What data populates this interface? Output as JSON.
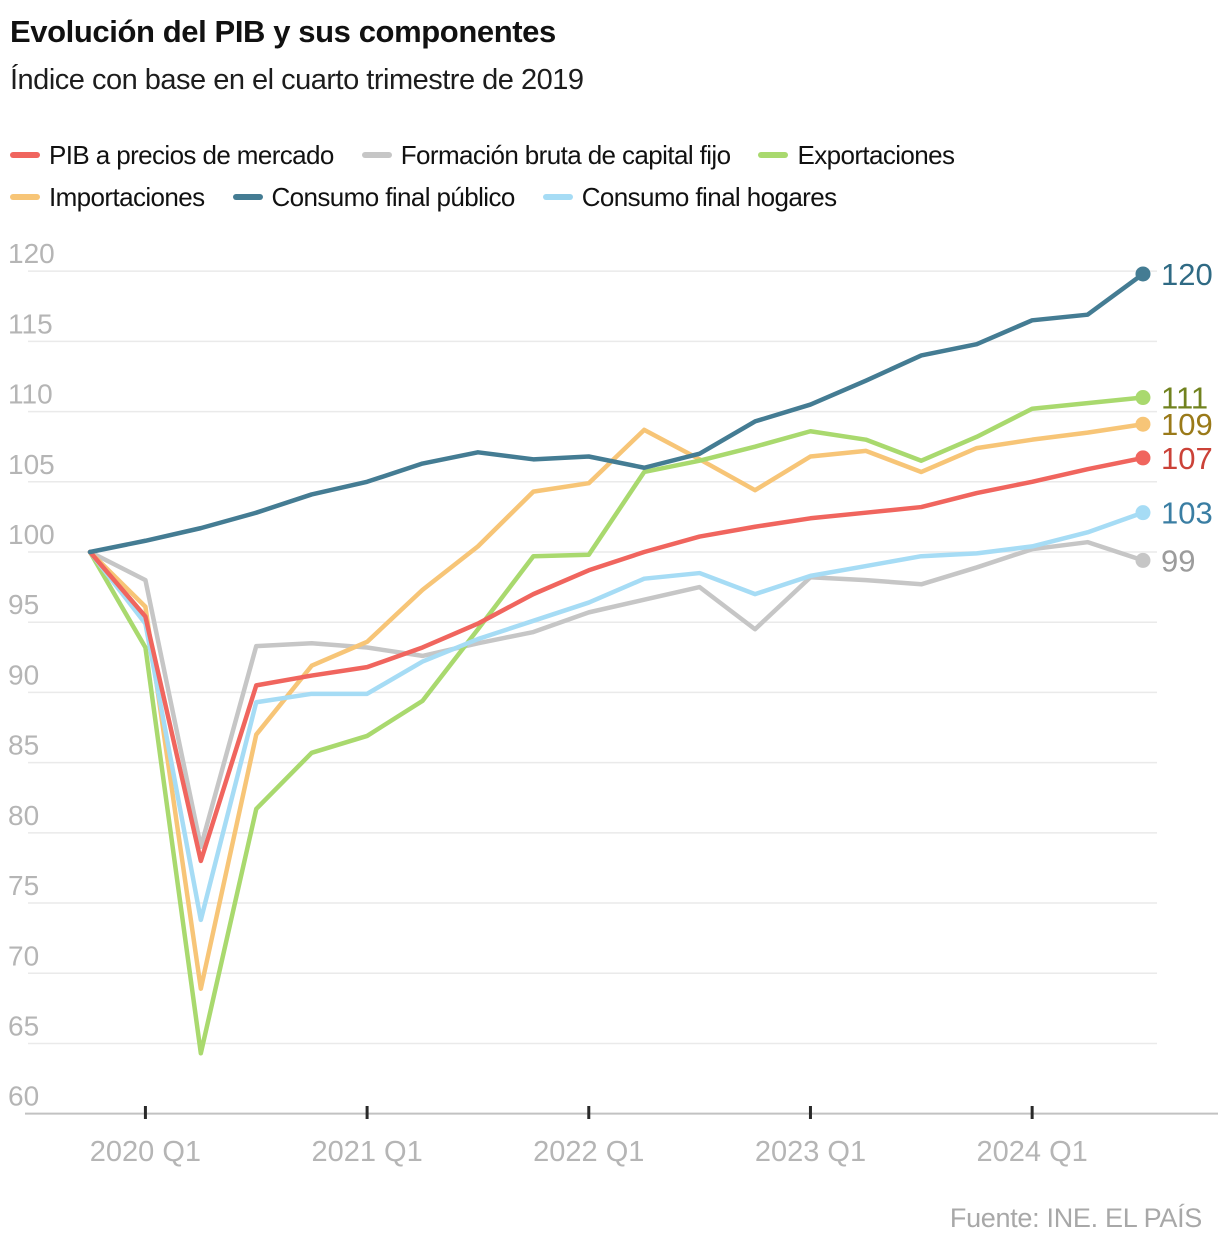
{
  "header": {
    "title": "Evolución del PIB y sus componentes",
    "subtitle": "Índice con base en el cuarto trimestre de 2019"
  },
  "footer": {
    "source": "Fuente: INE. EL PAÍS"
  },
  "chart_data": {
    "type": "line",
    "title": "Evolución del PIB y sus componentes",
    "subtitle": "Índice con base en el cuarto trimestre de 2019",
    "x_unit": "quarter",
    "quarters": [
      "2019 Q4",
      "2020 Q1",
      "2020 Q2",
      "2020 Q3",
      "2020 Q4",
      "2021 Q1",
      "2021 Q2",
      "2021 Q3",
      "2021 Q4",
      "2022 Q1",
      "2022 Q2",
      "2022 Q3",
      "2022 Q4",
      "2023 Q1",
      "2023 Q2",
      "2023 Q3",
      "2023 Q4",
      "2024 Q1",
      "2024 Q2",
      "2024 Q3"
    ],
    "x_tick_indices": [
      1,
      5,
      9,
      13,
      17
    ],
    "x_tick_labels": [
      "2020 Q1",
      "2021 Q1",
      "2022 Q1",
      "2023 Q1",
      "2024 Q1"
    ],
    "ylim": [
      60,
      120
    ],
    "y_ticks": [
      60,
      65,
      70,
      75,
      80,
      85,
      90,
      95,
      100,
      105,
      110,
      115,
      120
    ],
    "grid": true,
    "legend_position": "top",
    "legend_rows": [
      [
        0,
        1,
        2
      ],
      [
        3,
        4,
        5
      ]
    ],
    "draw_order": [
      1,
      3,
      2,
      5,
      0,
      4
    ],
    "base_value": 100,
    "series": [
      {
        "name": "PIB a precios de mercado",
        "color": "#f0655e",
        "label_color": "#cb4238",
        "end_label": "107",
        "values": [
          100,
          95.4,
          78,
          90.5,
          91.2,
          91.8,
          93.2,
          94.9,
          97.0,
          98.7,
          100.0,
          101.1,
          101.8,
          102.4,
          102.8,
          103.2,
          104.2,
          105.0,
          105.9,
          106.7
        ]
      },
      {
        "name": "Formación bruta de capital fijo",
        "color": "#c6c6c6",
        "label_color": "#9c9c9c",
        "end_label": "99",
        "values": [
          100,
          98.0,
          79.0,
          93.3,
          93.5,
          93.2,
          92.6,
          93.5,
          94.3,
          95.7,
          96.6,
          97.5,
          94.5,
          98.2,
          98.0,
          97.7,
          98.9,
          100.2,
          100.7,
          99.4
        ]
      },
      {
        "name": "Exportaciones",
        "color": "#a9d96e",
        "label_color": "#71821f",
        "end_label": "111",
        "values": [
          100,
          93.2,
          64.3,
          81.7,
          85.7,
          86.9,
          89.4,
          94.5,
          99.7,
          99.8,
          105.7,
          106.5,
          107.5,
          108.6,
          108.0,
          106.5,
          108.2,
          110.2,
          110.6,
          111.0
        ]
      },
      {
        "name": "Importaciones",
        "color": "#f7c577",
        "label_color": "#9a7a19",
        "end_label": "109",
        "values": [
          100,
          96.1,
          68.9,
          87.0,
          91.9,
          93.6,
          97.3,
          100.4,
          104.3,
          104.9,
          108.7,
          106.6,
          104.4,
          106.8,
          107.2,
          105.7,
          107.4,
          108.0,
          108.5,
          109.1
        ]
      },
      {
        "name": "Consumo final público",
        "color": "#447c93",
        "label_color": "#2f6a84",
        "end_label": "120",
        "values": [
          100,
          100.8,
          101.7,
          102.8,
          104.1,
          105.0,
          106.3,
          107.1,
          106.6,
          106.8,
          106.0,
          107.0,
          109.3,
          110.5,
          112.2,
          114.0,
          114.8,
          116.5,
          116.9,
          119.8
        ]
      },
      {
        "name": "Consumo final hogares",
        "color": "#a6dcf5",
        "label_color": "#3a7ea3",
        "end_label": "103",
        "values": [
          100,
          94.9,
          73.8,
          89.3,
          89.9,
          89.9,
          92.2,
          93.8,
          95.1,
          96.4,
          98.1,
          98.5,
          97.0,
          98.3,
          99.0,
          99.7,
          99.9,
          100.4,
          101.4,
          102.8
        ]
      }
    ],
    "style": {
      "grid_color": "#eaeaea",
      "axis_color": "#c2c2c2",
      "tick_color": "#2a2a2a",
      "axis_label_color": "#b5b5b5",
      "line_width": 4.5,
      "dot_radius": 7.5
    }
  }
}
